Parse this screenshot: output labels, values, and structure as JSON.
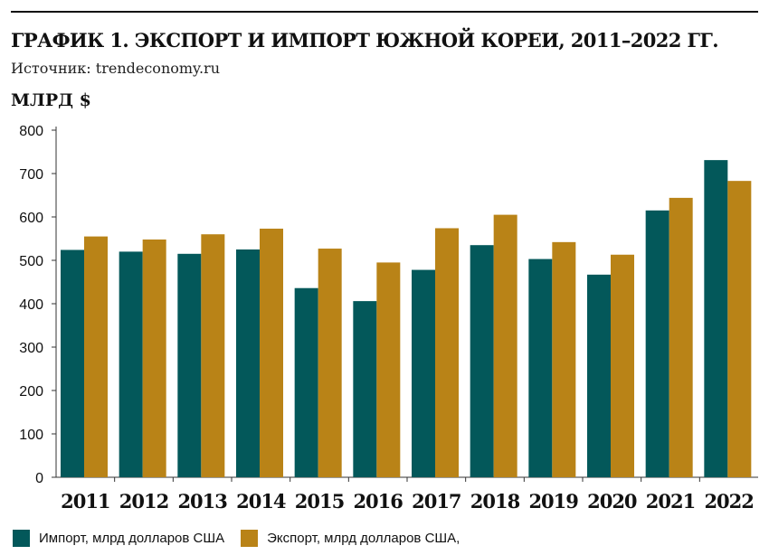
{
  "header": {
    "title": "ГРАФИК 1. ЭКСПОРТ И ИМПОРТ ЮЖНОЙ КОРЕИ, 2011–2022 ГГ.",
    "source": "Источник: trendeconomy.ru",
    "unit": "МЛРД $"
  },
  "colors": {
    "import": "#03585a",
    "export": "#b98317"
  },
  "chart_data": {
    "type": "bar",
    "title": "ГРАФИК 1. ЭКСПОРТ И ИМПОРТ ЮЖНОЙ КОРЕИ, 2011–2022 ГГ.",
    "ylabel": "МЛРД $",
    "xlabel": "",
    "ylim": [
      0,
      800
    ],
    "yticks": [
      0,
      100,
      200,
      300,
      400,
      500,
      600,
      700,
      800
    ],
    "grid": false,
    "legend": "bottom-left",
    "categories": [
      "2011",
      "2012",
      "2013",
      "2014",
      "2015",
      "2016",
      "2017",
      "2018",
      "2019",
      "2020",
      "2021",
      "2022"
    ],
    "series": [
      {
        "name": "Импорт, млрд долларов США",
        "values": [
          524,
          520,
          515,
          525,
          436,
          406,
          478,
          535,
          503,
          467,
          615,
          731
        ]
      },
      {
        "name": "Экспорт, млрд долларов США,",
        "values": [
          555,
          548,
          560,
          573,
          527,
          495,
          574,
          605,
          542,
          513,
          644,
          683
        ]
      }
    ]
  }
}
